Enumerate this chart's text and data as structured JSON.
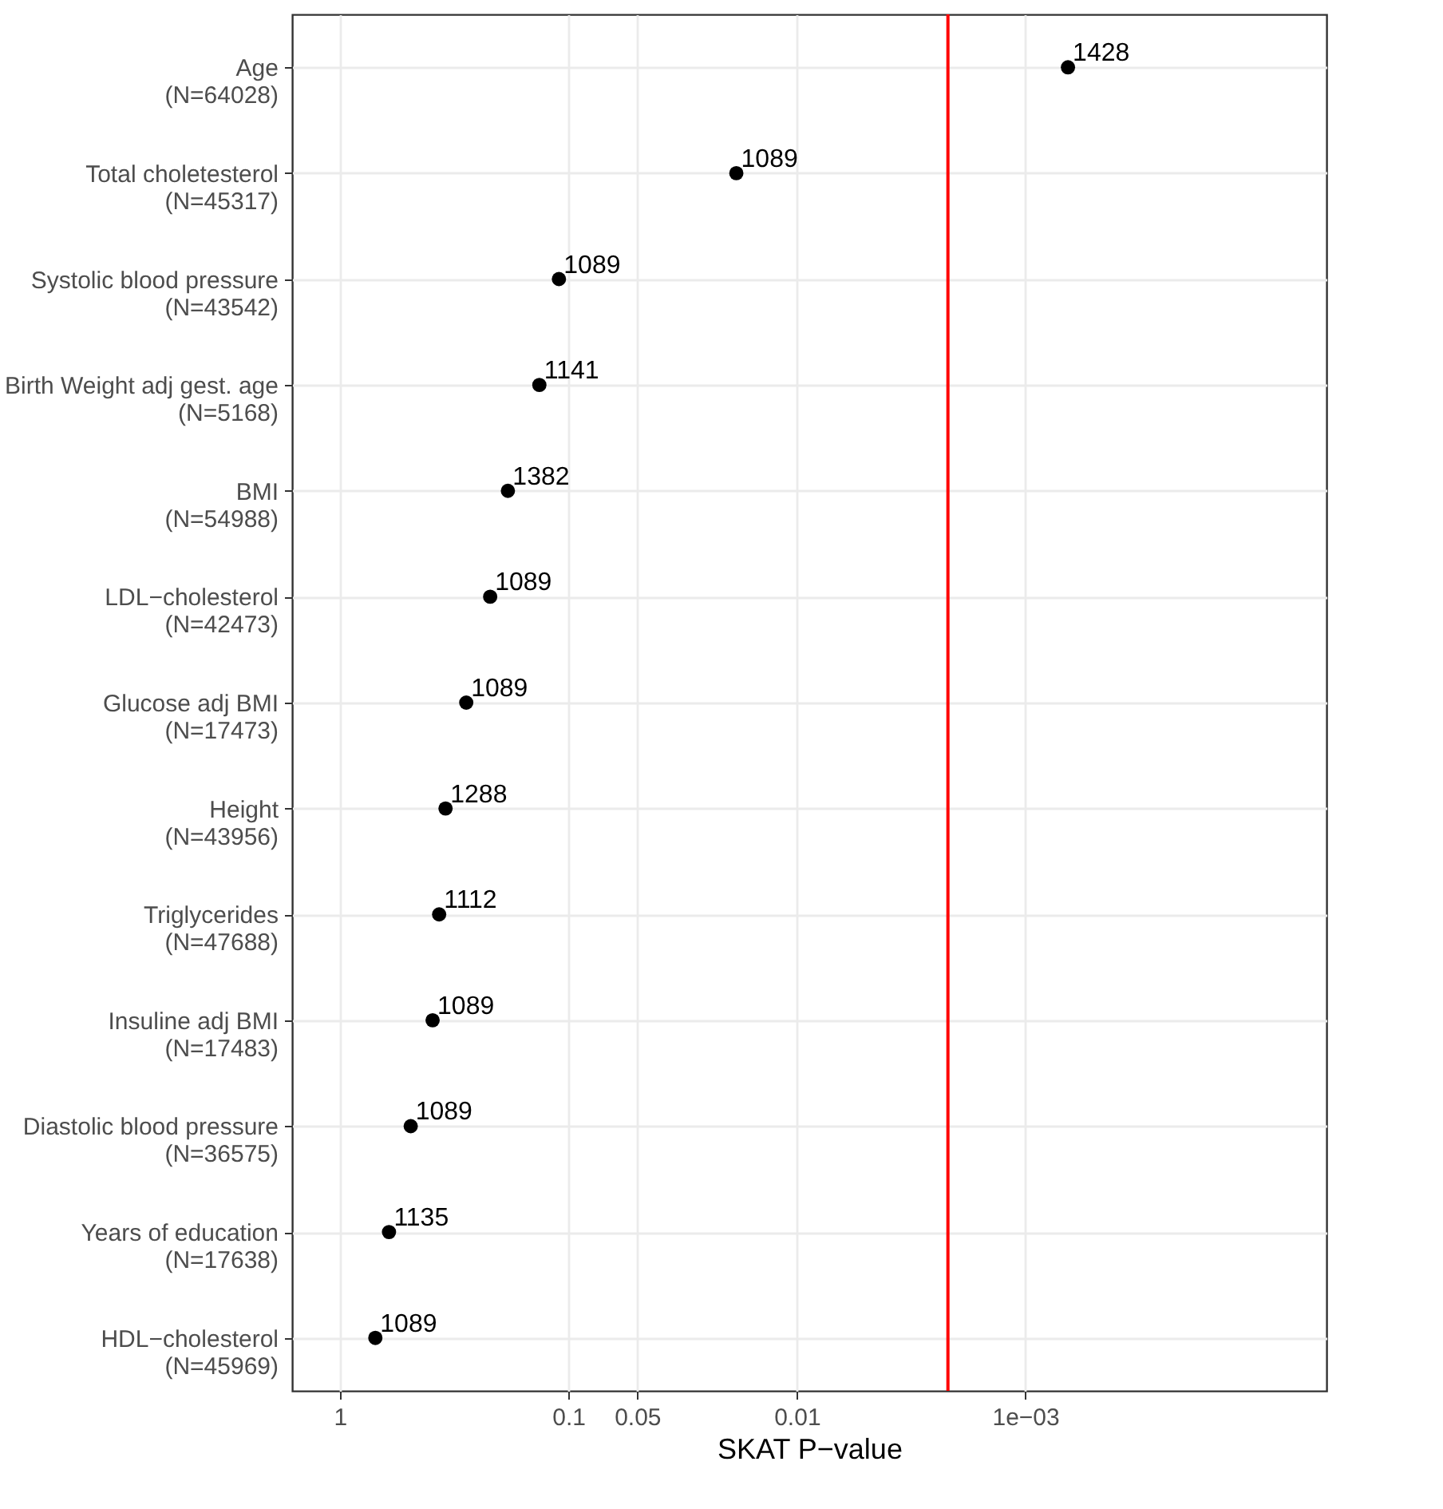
{
  "chart_data": {
    "type": "scatter",
    "xlabel": "SKAT P−value",
    "categories": [
      "Age\n(N=64028)",
      "Total choletesterol\n(N=45317)",
      "Systolic blood pressure\n(N=43542)",
      "Birth Weight adj gest. age\n(N=5168)",
      "BMI\n(N=54988)",
      "LDL−cholesterol\n(N=42473)",
      "Glucose adj BMI\n(N=17473)",
      "Height\n(N=43956)",
      "Triglycerides\n(N=47688)",
      "Insuline adj BMI\n(N=17483)",
      "Diastolic blood pressure\n(N=36575)",
      "Years of education\n(N=17638)",
      "HDL−cholesterol\n(N=45969)"
    ],
    "orientation": "horizontal",
    "values": [
      0.00065,
      0.0184,
      0.11,
      0.134,
      0.184,
      0.22,
      0.28,
      0.345,
      0.368,
      0.393,
      0.49,
      0.61,
      0.7
    ],
    "annotations": [
      "1428",
      "1089",
      "1089",
      "1141",
      "1382",
      "1089",
      "1089",
      "1288",
      "1112",
      "1089",
      "1089",
      "1135",
      "1089"
    ],
    "color": "#000000",
    "marker": "circle",
    "log": "x",
    "xlim": [
      1.62,
      4.8e-05
    ],
    "xticks": [
      1,
      0.1,
      0.05,
      0.01,
      {
        "value": 0.001,
        "label": "1e−03"
      }
    ],
    "ref_lines": [
      {
        "axis": "x",
        "value": 0.00218,
        "color": "#ff0000"
      }
    ],
    "grid": true
  }
}
